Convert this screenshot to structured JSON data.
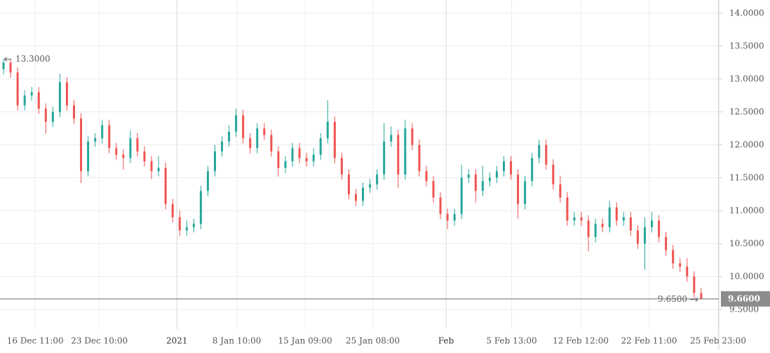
{
  "chart_data": {
    "type": "candlestick",
    "xlim": [
      0,
      102
    ],
    "xticks": [
      {
        "value": 5.0,
        "label": "16 Dec 11:00"
      },
      {
        "value": 14.1,
        "label": "23 Dec 10:00"
      },
      {
        "value": 25.1,
        "label": "2021"
      },
      {
        "value": 33.6,
        "label": "8 Jan 10:00"
      },
      {
        "value": 43.3,
        "label": "15 Jan 09:00"
      },
      {
        "value": 52.9,
        "label": "25 Jan 08:00"
      },
      {
        "value": 63.3,
        "label": "Feb"
      },
      {
        "value": 72.6,
        "label": "5 Feb 13:00"
      },
      {
        "value": 82.4,
        "label": "12 Feb 12:00"
      },
      {
        "value": 92.1,
        "label": "22 Feb 11:00"
      },
      {
        "value": 101.9,
        "label": "25 Feb 23:00"
      }
    ],
    "ylim": [
      9.2,
      14.2
    ],
    "yticks": [
      {
        "value": 9.5,
        "label": "9.5000"
      },
      {
        "value": 10,
        "label": "10.0000"
      },
      {
        "value": 10.5,
        "label": "10.5000"
      },
      {
        "value": 11,
        "label": "11.0000"
      },
      {
        "value": 11.5,
        "label": "11.5000"
      },
      {
        "value": 12,
        "label": "12.0000"
      },
      {
        "value": 12.5,
        "label": "12.5000"
      },
      {
        "value": 13,
        "label": "13.0000"
      },
      {
        "value": 13.5,
        "label": "13.5000"
      },
      {
        "value": 14,
        "label": "14.0000"
      }
    ],
    "grid": true,
    "up_color": "#26a69a",
    "down_color": "#ef5350",
    "open": [
      13.15,
      13.25,
      13.1,
      12.6,
      12.75,
      12.8,
      12.55,
      12.35,
      12.5,
      12.95,
      12.6,
      12.4,
      11.6,
      12.05,
      12.1,
      12.3,
      11.95,
      11.85,
      11.8,
      12.1,
      11.9,
      11.75,
      11.6,
      11.65,
      11.1,
      10.9,
      10.7,
      10.75,
      10.8,
      11.3,
      11.6,
      11.9,
      12.05,
      12.2,
      12.45,
      12.1,
      11.95,
      12.25,
      12.15,
      11.9,
      11.65,
      11.75,
      11.95,
      11.8,
      11.75,
      11.85,
      12.1,
      12.35,
      11.8,
      11.55,
      11.25,
      11.15,
      11.35,
      11.4,
      11.55,
      12.05,
      12.15,
      11.55,
      12.25,
      12.0,
      11.6,
      11.45,
      11.2,
      10.95,
      10.85,
      10.95,
      11.5,
      11.55,
      11.3,
      11.45,
      11.5,
      11.6,
      11.75,
      11.55,
      11.1,
      11.45,
      11.8,
      12.0,
      11.7,
      11.4,
      11.2,
      10.85,
      10.9,
      10.85,
      10.6,
      10.8,
      10.75,
      11.05,
      10.85,
      10.9,
      10.7,
      10.5,
      10.75,
      10.85,
      10.6,
      10.4,
      10.2,
      10.15,
      10.0,
      9.75
    ],
    "high": [
      13.3,
      13.3,
      13.18,
      12.83,
      12.88,
      12.88,
      12.63,
      12.58,
      13.08,
      13.03,
      12.68,
      12.48,
      12.13,
      12.18,
      12.38,
      12.38,
      12.03,
      11.93,
      12.22,
      12.18,
      11.98,
      11.83,
      11.83,
      11.73,
      11.18,
      11.0,
      10.85,
      10.88,
      11.38,
      11.68,
      12.0,
      12.13,
      12.3,
      12.55,
      12.53,
      12.18,
      12.33,
      12.33,
      12.23,
      11.98,
      11.83,
      12.03,
      12.03,
      11.88,
      11.95,
      12.18,
      12.68,
      12.43,
      11.88,
      11.63,
      11.33,
      11.43,
      11.48,
      11.63,
      12.33,
      12.28,
      12.23,
      12.38,
      12.33,
      12.08,
      11.68,
      11.53,
      11.28,
      11.03,
      11.03,
      11.7,
      11.63,
      11.63,
      11.68,
      11.58,
      11.68,
      11.83,
      11.83,
      11.63,
      11.53,
      11.88,
      12.08,
      12.08,
      11.78,
      11.53,
      11.28,
      10.98,
      10.98,
      10.93,
      10.88,
      10.88,
      11.15,
      11.13,
      10.98,
      10.98,
      10.78,
      10.9,
      10.98,
      10.93,
      10.68,
      10.48,
      10.28,
      10.28,
      10.08,
      9.83
    ],
    "low": [
      13.07,
      13.02,
      12.52,
      12.52,
      12.67,
      12.47,
      12.17,
      12.27,
      12.42,
      12.52,
      12.32,
      11.42,
      11.52,
      11.97,
      12.02,
      11.87,
      11.77,
      11.62,
      11.72,
      11.82,
      11.67,
      11.48,
      11.52,
      11.02,
      10.82,
      10.62,
      10.62,
      10.67,
      10.72,
      11.22,
      11.52,
      11.82,
      11.97,
      12.12,
      12.02,
      11.87,
      11.87,
      12.07,
      11.82,
      11.52,
      11.57,
      11.67,
      11.72,
      11.67,
      11.67,
      11.77,
      12.02,
      11.72,
      11.47,
      11.17,
      11.07,
      11.07,
      11.27,
      11.32,
      11.47,
      11.97,
      11.35,
      11.47,
      11.92,
      11.52,
      11.37,
      11.12,
      10.87,
      10.72,
      10.77,
      10.87,
      11.42,
      11.12,
      11.22,
      11.37,
      11.42,
      11.52,
      11.47,
      10.88,
      11.02,
      11.37,
      11.72,
      11.62,
      11.32,
      11.12,
      10.77,
      10.77,
      10.77,
      10.38,
      10.52,
      10.67,
      10.67,
      10.77,
      10.77,
      10.62,
      10.42,
      10.1,
      10.67,
      10.52,
      10.32,
      10.12,
      10.07,
      9.92,
      9.68,
      9.65
    ],
    "close": [
      13.25,
      13.1,
      12.6,
      12.75,
      12.8,
      12.55,
      12.35,
      12.5,
      12.95,
      12.6,
      12.4,
      11.6,
      12.05,
      12.1,
      12.3,
      11.95,
      11.85,
      11.8,
      12.1,
      11.9,
      11.75,
      11.6,
      11.65,
      11.1,
      10.9,
      10.7,
      10.75,
      10.8,
      11.3,
      11.6,
      11.9,
      12.05,
      12.2,
      12.45,
      12.1,
      11.95,
      12.25,
      12.15,
      11.9,
      11.65,
      11.75,
      11.95,
      11.8,
      11.75,
      11.85,
      12.1,
      12.35,
      11.8,
      11.55,
      11.25,
      11.15,
      11.35,
      11.4,
      11.55,
      12.05,
      12.15,
      11.55,
      12.25,
      12.0,
      11.6,
      11.45,
      11.2,
      10.95,
      10.85,
      10.95,
      11.5,
      11.55,
      11.3,
      11.45,
      11.5,
      11.6,
      11.75,
      11.55,
      11.1,
      11.45,
      11.8,
      12.0,
      11.7,
      11.4,
      11.2,
      10.85,
      10.9,
      10.85,
      10.6,
      10.8,
      10.75,
      11.05,
      10.85,
      10.9,
      10.7,
      10.5,
      10.75,
      10.85,
      10.6,
      10.4,
      10.2,
      10.15,
      10.0,
      9.75,
      9.66
    ],
    "max_marker": {
      "value": 13.3,
      "label": "13.3000"
    },
    "min_marker": {
      "value": 9.65,
      "label": "9.6500"
    },
    "last_price": {
      "value": 9.66,
      "label": "9.6600"
    }
  }
}
